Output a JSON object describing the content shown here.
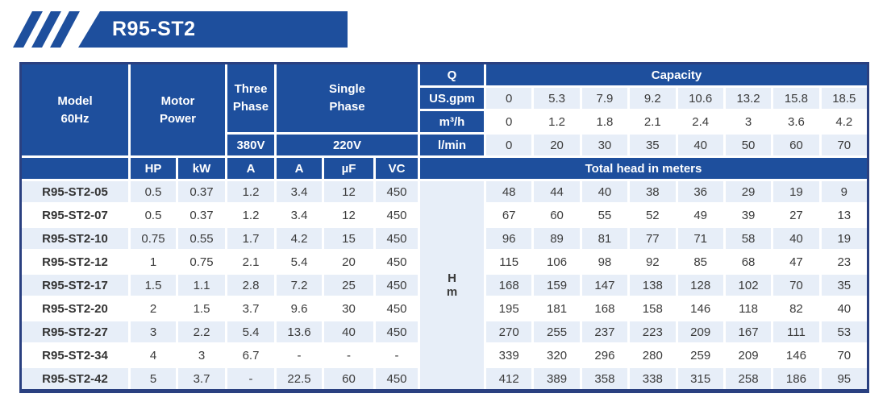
{
  "banner": {
    "title": "R95-ST2"
  },
  "colors": {
    "header_blue": "#1e4f9d",
    "border_navy": "#2a4080",
    "light_row": "#e7eef8",
    "text_dark": "#3b3b3b"
  },
  "table": {
    "header": {
      "model_line1": "Model",
      "model_line2": "60Hz",
      "motor_line1": "Motor",
      "motor_line2": "Power",
      "three_phase_line1": "Three",
      "three_phase_line2": "Phase",
      "three_phase_voltage": "380V",
      "single_phase_line1": "Single",
      "single_phase_line2": "Phase",
      "single_phase_voltage": "220V",
      "q_label": "Q",
      "capacity_label": "Capacity",
      "sub_columns": [
        "HP",
        "kW",
        "A",
        "A",
        "µF",
        "VC"
      ],
      "total_head_label": "Total head in meters",
      "head_unit_line1": "H",
      "head_unit_line2": "m"
    },
    "flow_rows": [
      {
        "unit": "US.gpm",
        "values": [
          "0",
          "5.3",
          "7.9",
          "9.2",
          "10.6",
          "13.2",
          "15.8",
          "18.5"
        ]
      },
      {
        "unit": "m³/h",
        "values": [
          "0",
          "1.2",
          "1.8",
          "2.1",
          "2.4",
          "3",
          "3.6",
          "4.2"
        ]
      },
      {
        "unit": "l/min",
        "values": [
          "0",
          "20",
          "30",
          "35",
          "40",
          "50",
          "60",
          "70"
        ]
      }
    ],
    "rows": [
      {
        "model": "R95-ST2-05",
        "motor": [
          "0.5",
          "0.37",
          "1.2",
          "3.4",
          "12",
          "450"
        ],
        "heads": [
          "48",
          "44",
          "40",
          "38",
          "36",
          "29",
          "19",
          "9"
        ]
      },
      {
        "model": "R95-ST2-07",
        "motor": [
          "0.5",
          "0.37",
          "1.2",
          "3.4",
          "12",
          "450"
        ],
        "heads": [
          "67",
          "60",
          "55",
          "52",
          "49",
          "39",
          "27",
          "13"
        ]
      },
      {
        "model": "R95-ST2-10",
        "motor": [
          "0.75",
          "0.55",
          "1.7",
          "4.2",
          "15",
          "450"
        ],
        "heads": [
          "96",
          "89",
          "81",
          "77",
          "71",
          "58",
          "40",
          "19"
        ]
      },
      {
        "model": "R95-ST2-12",
        "motor": [
          "1",
          "0.75",
          "2.1",
          "5.4",
          "20",
          "450"
        ],
        "heads": [
          "115",
          "106",
          "98",
          "92",
          "85",
          "68",
          "47",
          "23"
        ]
      },
      {
        "model": "R95-ST2-17",
        "motor": [
          "1.5",
          "1.1",
          "2.8",
          "7.2",
          "25",
          "450"
        ],
        "heads": [
          "168",
          "159",
          "147",
          "138",
          "128",
          "102",
          "70",
          "35"
        ]
      },
      {
        "model": "R95-ST2-20",
        "motor": [
          "2",
          "1.5",
          "3.7",
          "9.6",
          "30",
          "450"
        ],
        "heads": [
          "195",
          "181",
          "168",
          "158",
          "146",
          "118",
          "82",
          "40"
        ]
      },
      {
        "model": "R95-ST2-27",
        "motor": [
          "3",
          "2.2",
          "5.4",
          "13.6",
          "40",
          "450"
        ],
        "heads": [
          "270",
          "255",
          "237",
          "223",
          "209",
          "167",
          "111",
          "53"
        ]
      },
      {
        "model": "R95-ST2-34",
        "motor": [
          "4",
          "3",
          "6.7",
          "-",
          "-",
          "-"
        ],
        "heads": [
          "339",
          "320",
          "296",
          "280",
          "259",
          "209",
          "146",
          "70"
        ]
      },
      {
        "model": "R95-ST2-42",
        "motor": [
          "5",
          "3.7",
          "-",
          "22.5",
          "60",
          "450"
        ],
        "heads": [
          "412",
          "389",
          "358",
          "338",
          "315",
          "258",
          "186",
          "95"
        ]
      }
    ]
  }
}
